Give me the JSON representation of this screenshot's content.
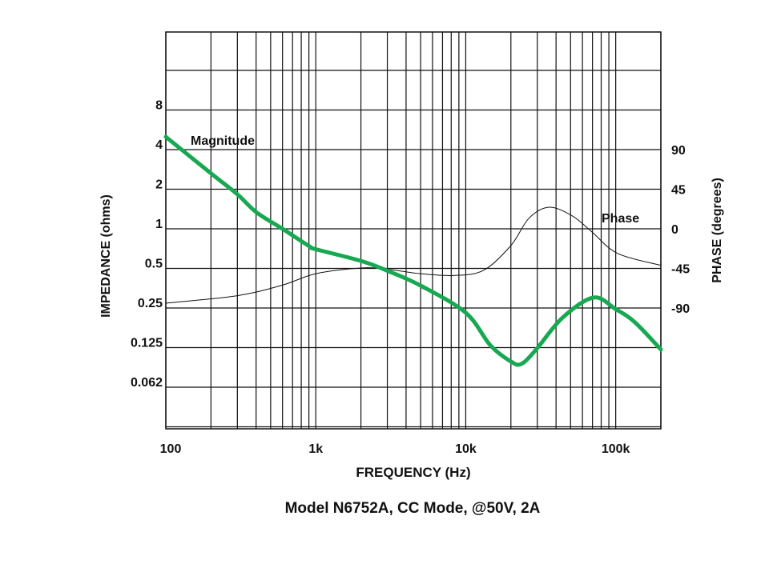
{
  "chart_data": {
    "type": "line",
    "title": "Model N6752A, CC Mode, @50V, 2A",
    "xlabel": "FREQUENCY (Hz)",
    "ylabel_left": "IMPEDANCE (ohms)",
    "ylabel_right": "PHASE (degrees)",
    "x_scale": "log",
    "xlim": [
      100,
      200000
    ],
    "x_ticks": [
      {
        "value": 100,
        "label": "100"
      },
      {
        "value": 1000,
        "label": "1k"
      },
      {
        "value": 10000,
        "label": "10k"
      },
      {
        "value": 100000,
        "label": "100k"
      }
    ],
    "y_left_scale": "log2",
    "y_left_lim": [
      0.031,
      32
    ],
    "y_left_ticks": [
      {
        "value": 8,
        "label": "8"
      },
      {
        "value": 4,
        "label": "4"
      },
      {
        "value": 2,
        "label": "2"
      },
      {
        "value": 1,
        "label": "1"
      },
      {
        "value": 0.5,
        "label": "0.5"
      },
      {
        "value": 0.25,
        "label": "0.25"
      },
      {
        "value": 0.125,
        "label": "0.125"
      },
      {
        "value": 0.0625,
        "label": "0.062"
      }
    ],
    "y_right_ticks": [
      {
        "value": 90,
        "label": "90"
      },
      {
        "value": 45,
        "label": "45"
      },
      {
        "value": 0,
        "label": "0"
      },
      {
        "value": -45,
        "label": "-45"
      },
      {
        "value": -90,
        "label": "-90"
      }
    ],
    "grid": true,
    "series": [
      {
        "name": "Magnitude",
        "axis": "left",
        "color": "#17a852",
        "x": [
          100,
          200,
          300,
          400,
          600,
          900,
          1000,
          2000,
          3000,
          5000,
          10000,
          14600,
          20000,
          23500,
          29500,
          44000,
          71000,
          100000,
          134000,
          200000
        ],
        "y": [
          5.0,
          2.64,
          1.83,
          1.34,
          1.0,
          0.74,
          0.7,
          0.57,
          0.48,
          0.37,
          0.23,
          0.13,
          0.098,
          0.094,
          0.121,
          0.21,
          0.3,
          0.245,
          0.195,
          0.121
        ]
      },
      {
        "name": "Phase",
        "axis": "right",
        "color": "#111111",
        "x": [
          100,
          300,
          600,
          1000,
          2000,
          3000,
          5000,
          8400,
          13200,
          20000,
          26400,
          36000,
          51500,
          69500,
          103000,
          200000
        ],
        "y": [
          -84.5,
          -76,
          -64,
          -51,
          -44.5,
          -46,
          -51,
          -53,
          -47,
          -19,
          12,
          24.5,
          14.5,
          -3.6,
          -28,
          -41.5
        ]
      }
    ],
    "annotations": [
      {
        "text": "Magnitude",
        "series": "Magnitude"
      },
      {
        "text": "Phase",
        "series": "Phase"
      }
    ]
  }
}
